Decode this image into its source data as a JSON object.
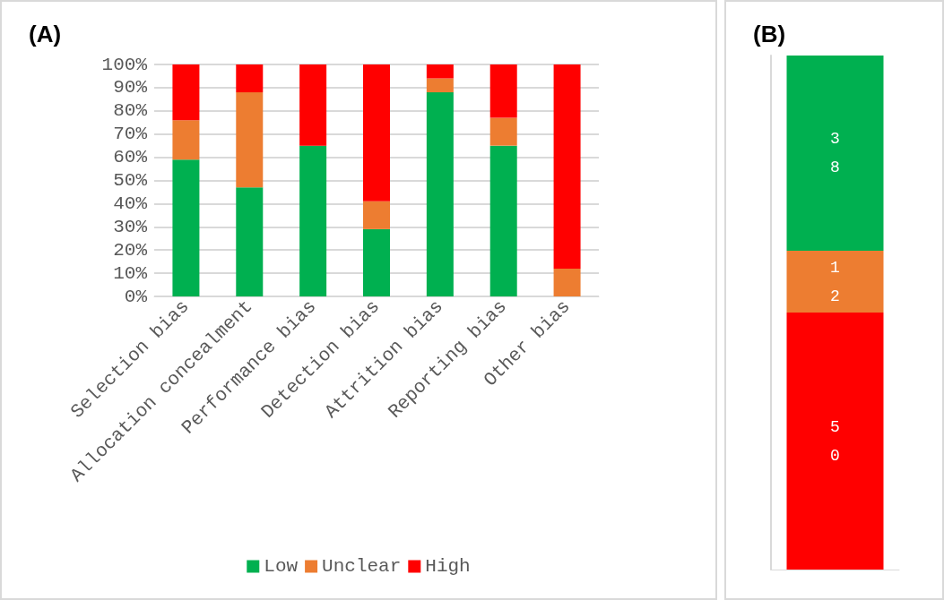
{
  "chart_data": [
    {
      "type": "bar",
      "title": "(A)",
      "stacked": true,
      "categories": [
        "Selection bias",
        "Allocation concealment",
        "Performance bias",
        "Detection bias",
        "Attrition bias",
        "Reporting bias",
        "Other bias"
      ],
      "series": [
        {
          "name": "Low",
          "color": "#00b050",
          "values": [
            59,
            47,
            65,
            29,
            88,
            65,
            0
          ]
        },
        {
          "name": "Unclear",
          "color": "#ed7d31",
          "values": [
            17,
            41,
            0,
            12,
            6,
            12,
            12
          ]
        },
        {
          "name": "High",
          "color": "#ff0000",
          "values": [
            24,
            12,
            35,
            59,
            6,
            23,
            88
          ]
        }
      ],
      "ylim": [
        0,
        100
      ],
      "yticks": [
        {
          "value": 0,
          "label": "0%"
        },
        {
          "value": 10,
          "label": "10%"
        },
        {
          "value": 20,
          "label": "20%"
        },
        {
          "value": 30,
          "label": "30%"
        },
        {
          "value": 40,
          "label": "40%"
        },
        {
          "value": 50,
          "label": "50%"
        },
        {
          "value": 60,
          "label": "60%"
        },
        {
          "value": 70,
          "label": "70%"
        },
        {
          "value": 80,
          "label": "80%"
        },
        {
          "value": 90,
          "label": "90%"
        },
        {
          "value": 100,
          "label": "100%"
        }
      ],
      "grid": "y",
      "legend": "bottom"
    },
    {
      "type": "bar",
      "title": "(B)",
      "stacked": true,
      "categories": [
        null
      ],
      "series": [
        {
          "color": "#ff0000",
          "values": [
            50
          ]
        },
        {
          "color": "#ed7d31",
          "values": [
            12
          ]
        },
        {
          "color": "#00b050",
          "values": [
            38
          ]
        }
      ],
      "data_labels": true,
      "tick_labels": false,
      "legend": false
    }
  ]
}
